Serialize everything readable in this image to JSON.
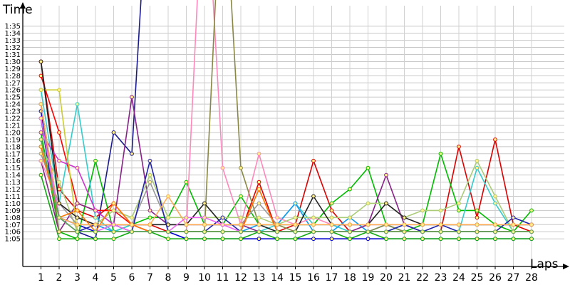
{
  "chart_data": {
    "type": "line",
    "title": "",
    "xlabel": "Laps",
    "ylabel": "Time",
    "x_range": [
      0,
      29
    ],
    "y_range_seconds": [
      61,
      99
    ],
    "grid": true,
    "legend": "none",
    "categories": [
      1,
      2,
      3,
      4,
      5,
      6,
      7,
      8,
      9,
      10,
      11,
      12,
      13,
      14,
      15,
      16,
      17,
      18,
      19,
      20,
      21,
      22,
      23,
      24,
      25,
      26,
      27,
      28
    ],
    "y_tick_labels": [
      "1:05",
      "1:06",
      "1:07",
      "1:08",
      "1:09",
      "1:10",
      "1:11",
      "1:12",
      "1:13",
      "1:14",
      "1:15",
      "1:16",
      "1:17",
      "1:18",
      "1:19",
      "1:20",
      "1:21",
      "1:22",
      "1:23",
      "1:24",
      "1:25",
      "1:26",
      "1:27",
      "1:28",
      "1:29",
      "1:30",
      "1:31",
      "1:32",
      "1:33",
      "1:34",
      "1:35"
    ],
    "series": [
      {
        "color": "#0000cc",
        "values": [
          83,
          68,
          67,
          66,
          66,
          66,
          66,
          66,
          65,
          65,
          65,
          65,
          65,
          65,
          65,
          65,
          65,
          65,
          65,
          65,
          65,
          65,
          65,
          65,
          65,
          65,
          65,
          65
        ]
      },
      {
        "color": "#1a1a8c",
        "values": [
          82,
          66,
          66,
          65,
          80,
          77,
          120,
          null,
          null,
          null,
          null,
          null,
          null,
          null,
          null,
          null,
          null,
          null,
          null,
          null,
          null,
          null,
          null,
          null,
          null,
          null,
          null,
          null
        ]
      },
      {
        "color": "#ff0000",
        "values": [
          88,
          80,
          70,
          69,
          69,
          67,
          66,
          66,
          66,
          66,
          66,
          66,
          66,
          66,
          66,
          66,
          66,
          66,
          66,
          66,
          66,
          66,
          66,
          66,
          66,
          66,
          66,
          66
        ]
      },
      {
        "color": "#dd0000",
        "values": [
          90,
          72,
          69,
          68,
          70,
          67,
          67,
          66,
          66,
          66,
          66,
          66,
          73,
          66,
          67,
          76,
          69,
          66,
          66,
          66,
          66,
          66,
          66,
          78,
          68,
          79,
          67,
          66
        ]
      },
      {
        "color": "#00bb00",
        "values": [
          80,
          66,
          65,
          76,
          66,
          67,
          68,
          68,
          73,
          67,
          67,
          71,
          67,
          67,
          67,
          67,
          70,
          72,
          75,
          67,
          66,
          67,
          77,
          69,
          69,
          67,
          66,
          69
        ]
      },
      {
        "color": "#11aa11",
        "values": [
          74,
          65,
          65,
          65,
          65,
          66,
          66,
          65,
          65,
          65,
          65,
          65,
          66,
          65,
          65,
          66,
          66,
          65,
          66,
          65,
          65,
          65,
          65,
          65,
          65,
          65,
          65,
          65
        ]
      },
      {
        "color": "#33cccc",
        "values": [
          86,
          70,
          84,
          68,
          66,
          67,
          66,
          66,
          66,
          66,
          66,
          66,
          66,
          67,
          70,
          67,
          67,
          66,
          66,
          66,
          67,
          66,
          66,
          66,
          75,
          70,
          66,
          66
        ]
      },
      {
        "color": "#1199ee",
        "values": [
          78,
          68,
          67,
          67,
          66,
          66,
          66,
          66,
          66,
          66,
          66,
          66,
          67,
          67,
          70,
          66,
          66,
          68,
          66,
          67,
          66,
          66,
          66,
          66,
          66,
          66,
          66,
          66
        ]
      },
      {
        "color": "#882288",
        "values": [
          76,
          66,
          70,
          69,
          67,
          85,
          69,
          67,
          67,
          67,
          67,
          67,
          66,
          66,
          66,
          66,
          66,
          66,
          67,
          74,
          67,
          66,
          66,
          66,
          66,
          66,
          66,
          66
        ]
      },
      {
        "color": "#cc33cc",
        "values": [
          80,
          76,
          75,
          69,
          67,
          67,
          66,
          66,
          66,
          66,
          66,
          66,
          66,
          66,
          66,
          66,
          66,
          66,
          66,
          66,
          66,
          66,
          66,
          66,
          66,
          66,
          66,
          66
        ]
      },
      {
        "color": "#ff88bb",
        "values": [
          76,
          70,
          68,
          67,
          67,
          67,
          66,
          66,
          66,
          120,
          75,
          67,
          77,
          68,
          67,
          68,
          67,
          67,
          67,
          67,
          67,
          66,
          66,
          66,
          66,
          66,
          66,
          66
        ]
      },
      {
        "color": "#888844",
        "values": [
          84,
          66,
          66,
          66,
          66,
          66,
          66,
          66,
          66,
          66,
          120,
          75,
          67,
          67,
          66,
          66,
          66,
          66,
          66,
          67,
          66,
          66,
          66,
          66,
          66,
          66,
          66,
          66
        ]
      },
      {
        "color": "#cccc33",
        "values": [
          86,
          86,
          66,
          66,
          66,
          66,
          66,
          66,
          66,
          66,
          66,
          66,
          66,
          66,
          66,
          66,
          66,
          66,
          66,
          66,
          66,
          66,
          66,
          66,
          66,
          66,
          66,
          66
        ]
      },
      {
        "color": "#aacc77",
        "values": [
          78,
          73,
          66,
          67,
          69,
          68,
          74,
          68,
          68,
          68,
          68,
          68,
          68,
          67,
          68,
          68,
          68,
          68,
          70,
          70,
          68,
          69,
          69,
          70,
          76,
          71,
          66,
          66
        ]
      },
      {
        "color": "#999999",
        "values": [
          77,
          70,
          67,
          67,
          67,
          67,
          73,
          67,
          67,
          67,
          67,
          67,
          70,
          67,
          67,
          67,
          67,
          67,
          67,
          67,
          67,
          67,
          67,
          67,
          67,
          67,
          67,
          67
        ]
      },
      {
        "color": "#222222",
        "values": [
          90,
          70,
          68,
          67,
          67,
          67,
          67,
          67,
          67,
          70,
          67,
          67,
          67,
          66,
          66,
          71,
          67,
          67,
          67,
          70,
          68,
          67,
          67,
          67,
          67,
          67,
          67,
          67
        ]
      },
      {
        "color": "#2222aa",
        "values": [
          84,
          68,
          66,
          67,
          67,
          66,
          76,
          66,
          66,
          66,
          68,
          66,
          66,
          66,
          66,
          66,
          66,
          66,
          66,
          66,
          67,
          66,
          67,
          66,
          66,
          66,
          68,
          67
        ]
      },
      {
        "color": "#ff7700",
        "values": [
          78,
          68,
          69,
          66,
          70,
          67,
          66,
          66,
          66,
          66,
          66,
          66,
          72,
          66,
          66,
          66,
          66,
          66,
          66,
          66,
          66,
          66,
          66,
          66,
          66,
          66,
          66,
          66
        ]
      },
      {
        "color": "#ffaa55",
        "values": [
          84,
          68,
          67,
          67,
          67,
          67,
          67,
          71,
          67,
          67,
          67,
          67,
          67,
          67,
          67,
          67,
          67,
          67,
          67,
          67,
          67,
          67,
          67,
          67,
          67,
          67,
          67,
          67
        ]
      },
      {
        "color": "#ee66ee",
        "values": [
          82,
          68,
          66,
          66,
          67,
          66,
          66,
          66,
          68,
          68,
          67,
          66,
          66,
          66,
          66,
          66,
          66,
          66,
          66,
          66,
          66,
          66,
          66,
          66,
          66,
          66,
          66,
          66
        ]
      },
      {
        "color": "#55aa55",
        "values": [
          79,
          68,
          66,
          66,
          66,
          66,
          66,
          66,
          66,
          66,
          66,
          66,
          66,
          66,
          66,
          66,
          66,
          66,
          66,
          66,
          66,
          66,
          66,
          66,
          66,
          66,
          66,
          66
        ]
      }
    ]
  }
}
